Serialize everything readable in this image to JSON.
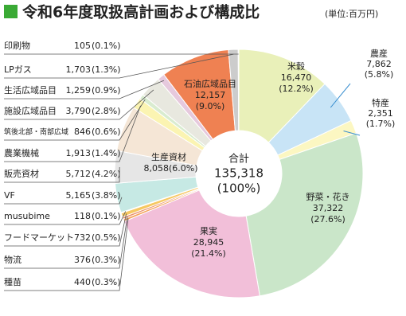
{
  "chart_data": {
    "type": "donut",
    "title": "令和6年度取扱高計画および構成比",
    "unit": "(単位:百万円)",
    "center": {
      "caption": "合計",
      "total": "135,318",
      "percent": "(100%)"
    },
    "categories": [
      "米穀",
      "農産",
      "特産",
      "野菜・花き",
      "果実",
      "種苗",
      "物流",
      "フードマーケット",
      "musubime",
      "VF",
      "販売資材",
      "生産資材",
      "農業機械",
      "筑後北部・南部広域",
      "施設広域品目",
      "生活広域品目",
      "石油広域品目",
      "LPガス",
      "印刷物"
    ],
    "values": [
      16470,
      7862,
      2351,
      37322,
      28945,
      440,
      376,
      732,
      118,
      5165,
      5712,
      8058,
      1913,
      846,
      3790,
      1259,
      12157,
      1703,
      105
    ],
    "value_labels": [
      "16,470",
      "7,862",
      "2,351",
      "37,322",
      "28,945",
      "440",
      "376",
      "732",
      "118",
      "5,165",
      "5,712",
      "8,058",
      "1,913",
      "846",
      "3,790",
      "1,259",
      "12,157",
      "1,703",
      "105"
    ],
    "percent_labels": [
      "(12.2%)",
      "(5.8%)",
      "(1.7%)",
      "(27.6%)",
      "(21.4%)",
      "(0.3%)",
      "(0.3%)",
      "(0.5%)",
      "(0.1%)",
      "(3.8%)",
      "(4.2%)",
      "(6.0%)",
      "(1.4%)",
      "(0.6%)",
      "(2.8%)",
      "(0.9%)",
      "(9.0%)",
      "(1.3%)",
      "(0.1%)"
    ],
    "colors": [
      "#e9f0b9",
      "#c8e4f6",
      "#fcf7c2",
      "#cae6c9",
      "#f2bfd9",
      "#f5a45c",
      "#e98f6d",
      "#f6c862",
      "#aab0d0",
      "#c6e9e4",
      "#e6e6e6",
      "#f5e6d6",
      "#fbf4b2",
      "#d9ecd0",
      "#e8e8df",
      "#e6c9dd",
      "#ef8152",
      "#cccccc",
      "#e2e2e2"
    ]
  }
}
